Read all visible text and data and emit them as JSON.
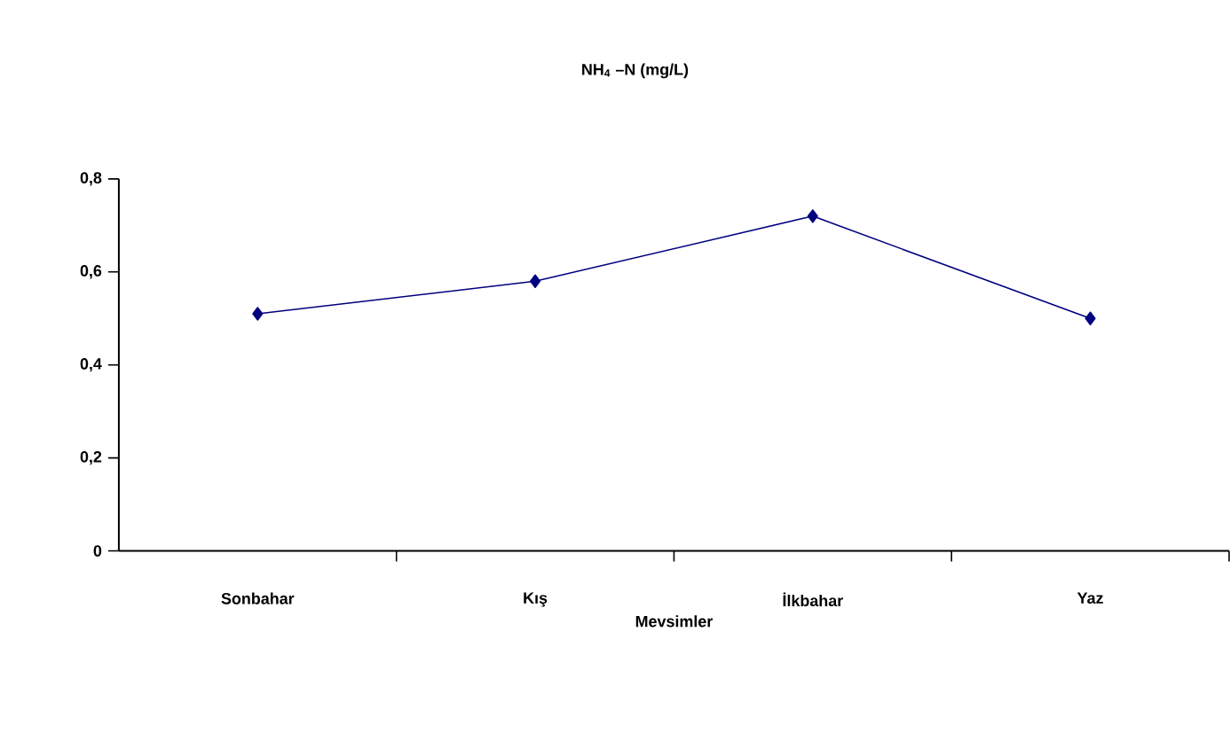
{
  "chart_data": {
    "type": "line",
    "title": "NH$_{4}$ –N (mg/L)",
    "xlabel": "Mevsimler",
    "categories": [
      "Sonbahar",
      "Kış",
      "İlkbahar",
      "Yaz"
    ],
    "series": [
      {
        "color": "#000080",
        "values": [
          0.51,
          0.58,
          0.72,
          0.5
        ]
      }
    ],
    "ylim": [
      0,
      0.8
    ],
    "yticks": [
      0,
      {
        "value": 0.2,
        "label": "0,2"
      },
      {
        "value": 0.4,
        "label": "0,4"
      },
      {
        "value": 0.6,
        "label": "0,6"
      },
      {
        "value": 0.8,
        "label": "0,8"
      }
    ],
    "marker": "diamond",
    "grid": false
  }
}
